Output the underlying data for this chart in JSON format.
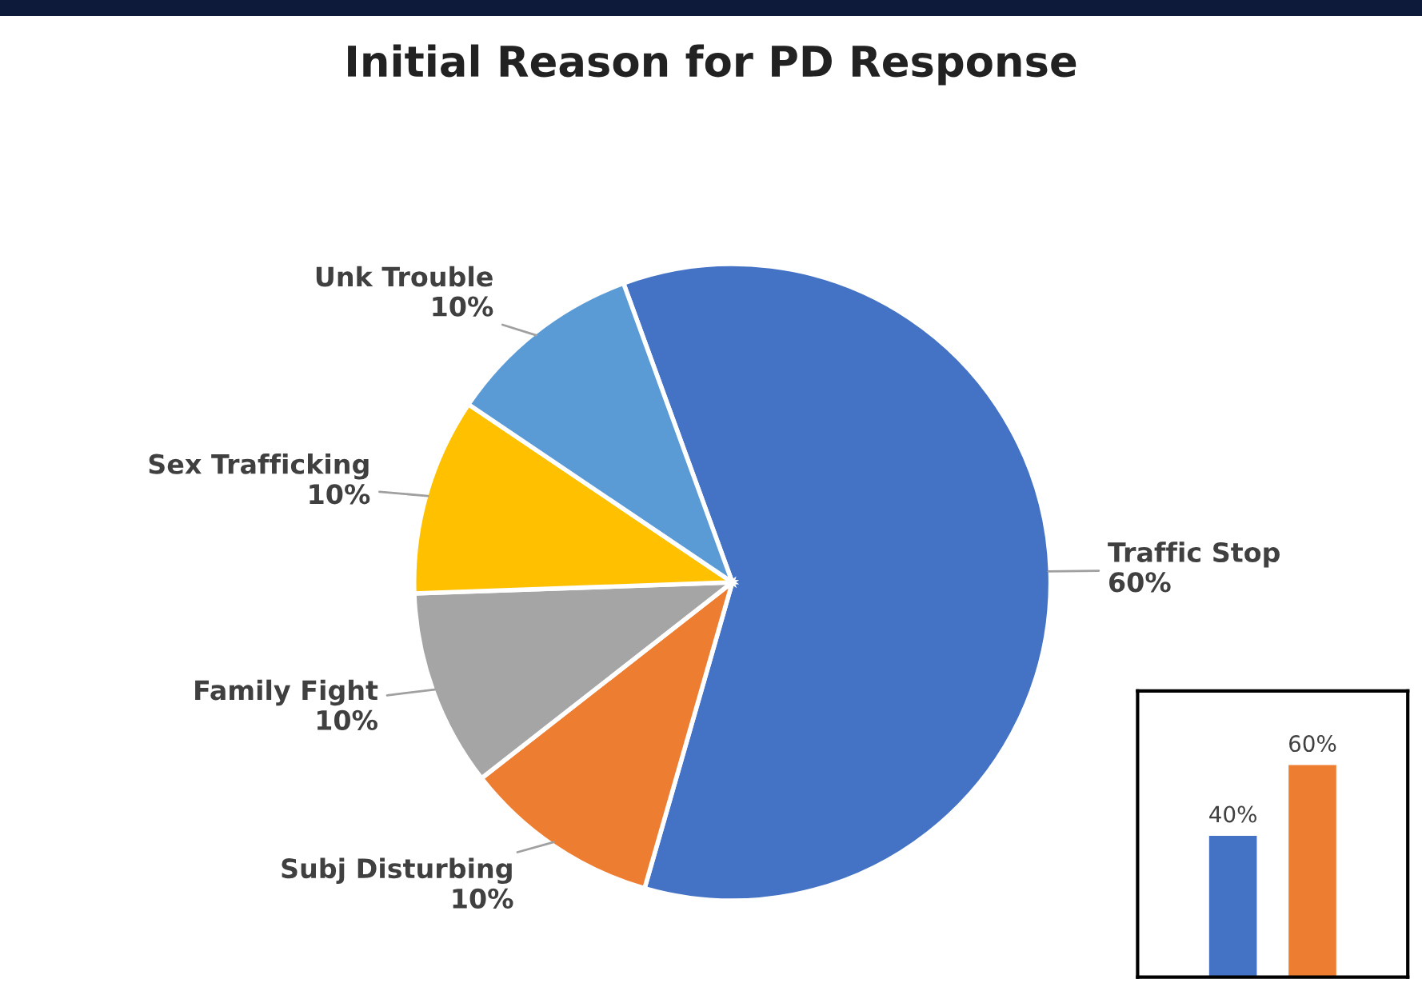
{
  "chart_data": [
    {
      "type": "pie",
      "title": "Initial Reason for PD Response",
      "categories": [
        "Traffic Stop",
        "Subj Disturbing",
        "Family Fight",
        "Sex Trafficking",
        "Unk Trouble"
      ],
      "values": [
        60,
        10,
        10,
        10,
        10
      ],
      "value_labels": [
        "60%",
        "10%",
        "10%",
        "10%",
        "10%"
      ],
      "colors": [
        "#4472c4",
        "#ed7d31",
        "#a5a5a5",
        "#ffc000",
        "#5b9bd5"
      ],
      "legend": false
    },
    {
      "type": "bar",
      "categories": [
        null,
        null
      ],
      "values": [
        40,
        60
      ],
      "value_labels": [
        "40%",
        "60%"
      ],
      "colors": [
        "#4472c4",
        "#ed7d31"
      ],
      "legend": false
    }
  ]
}
